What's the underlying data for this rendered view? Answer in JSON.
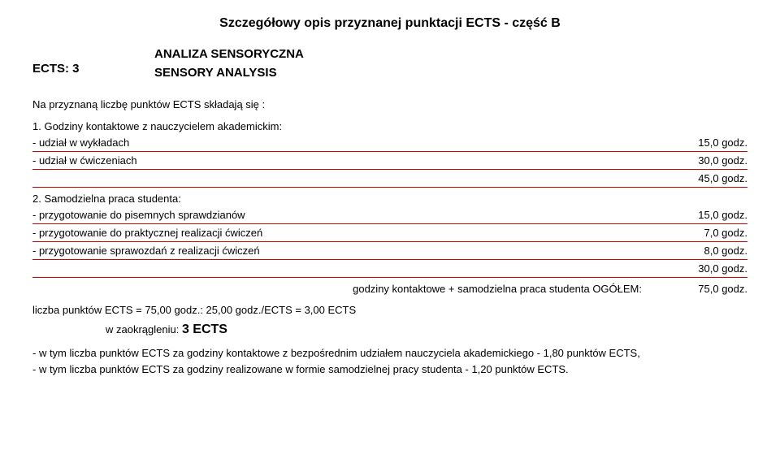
{
  "header": {
    "title_main": "Szczegółowy opis przyznanej punktacji ECTS - część B",
    "title_sub1": "ANALIZA SENSORYCZNA",
    "title_sub2": "SENSORY ANALYSIS",
    "ects_label": "ECTS: 3"
  },
  "intro": "Na przyznaną liczbę punktów ECTS składają się :",
  "section1": {
    "heading": "1. Godziny kontaktowe z nauczycielem akademickim:",
    "rows": [
      {
        "label": "- udział w wykładach",
        "value": "15,0 godz."
      },
      {
        "label": "- udział w ćwiczeniach",
        "value": "30,0 godz."
      }
    ],
    "subtotal": "45,0 godz."
  },
  "section2": {
    "heading": "2. Samodzielna praca studenta:",
    "rows": [
      {
        "label": "- przygotowanie do pisemnych sprawdzianów",
        "value": "15,0 godz."
      },
      {
        "label": "- przygotowanie do praktycznej realizacji ćwiczeń",
        "value": "7,0 godz."
      },
      {
        "label": "- przygotowanie sprawozdań z realizacji ćwiczeń",
        "value": "8,0 godz."
      }
    ],
    "subtotal": "30,0 godz."
  },
  "total": {
    "label": "godziny kontaktowe + samodzielna praca studenta  OGÓŁEM:",
    "value": "75,0 godz."
  },
  "calc": "liczba punktów ECTS = 75,00 godz.: 25,00 godz./ECTS = 3,00 ECTS",
  "round": {
    "prefix": "w zaokrągleniu: ",
    "value": "3 ECTS"
  },
  "footnotes": {
    "line1": "- w tym liczba punktów ECTS za godziny kontaktowe z bezpośrednim udziałem nauczyciela akademickiego - 1,80 punktów ECTS,",
    "line2": "- w tym liczba punktów ECTS za godziny realizowane w formie samodzielnej pracy studenta - 1,20 punktów ECTS."
  },
  "colors": {
    "rule": "#d40000",
    "text": "#000000",
    "background": "#ffffff"
  }
}
